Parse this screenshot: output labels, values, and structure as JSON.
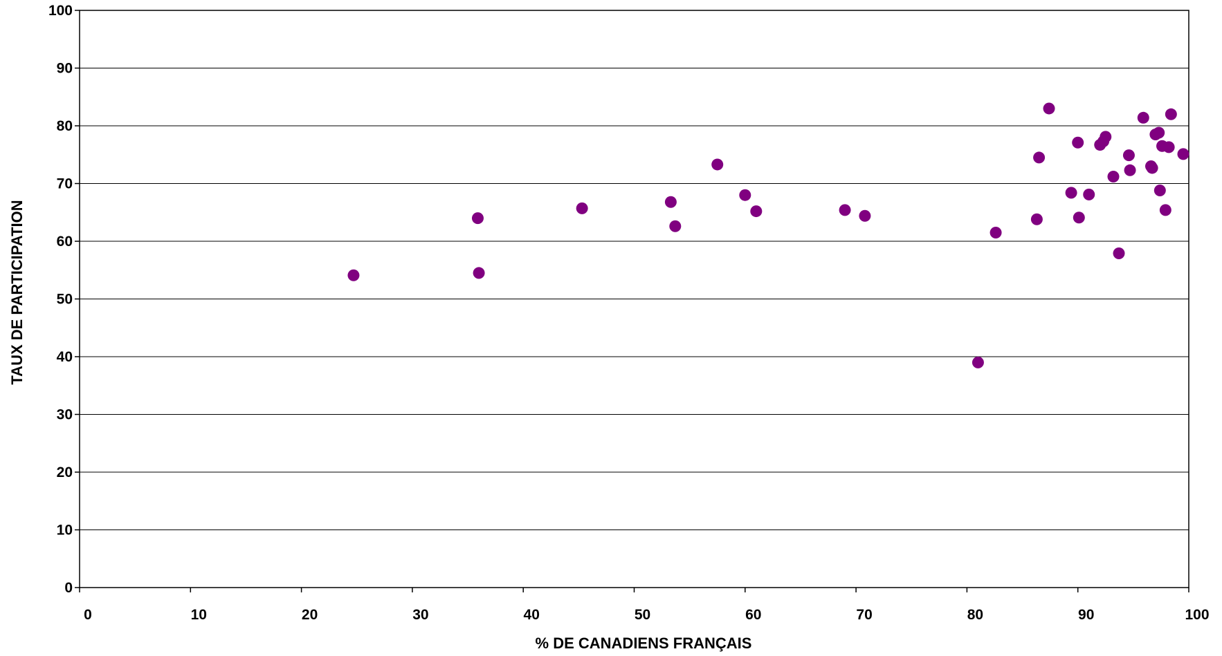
{
  "chart_data": {
    "type": "scatter",
    "title": "",
    "xlabel": "% DE CANADIENS FRANÇAIS",
    "ylabel": "TAUX DE PARTICIPATION",
    "xlim": [
      0,
      100
    ],
    "ylim": [
      0,
      100
    ],
    "xticks": [
      0,
      10,
      20,
      30,
      40,
      50,
      60,
      70,
      80,
      90,
      100
    ],
    "yticks": [
      0,
      10,
      20,
      30,
      40,
      50,
      60,
      70,
      80,
      90,
      100
    ],
    "grid": "horizontal",
    "legend": "none",
    "marker_color": "#800080",
    "points": [
      {
        "x": 24.7,
        "y": 54.1
      },
      {
        "x": 35.9,
        "y": 64.0
      },
      {
        "x": 36.0,
        "y": 54.5
      },
      {
        "x": 45.3,
        "y": 65.7
      },
      {
        "x": 53.3,
        "y": 66.8
      },
      {
        "x": 53.7,
        "y": 62.6
      },
      {
        "x": 57.5,
        "y": 73.3
      },
      {
        "x": 60.0,
        "y": 68.0
      },
      {
        "x": 61.0,
        "y": 65.2
      },
      {
        "x": 69.0,
        "y": 65.4
      },
      {
        "x": 70.8,
        "y": 64.4
      },
      {
        "x": 81.0,
        "y": 39.0
      },
      {
        "x": 82.6,
        "y": 61.5
      },
      {
        "x": 86.3,
        "y": 63.8
      },
      {
        "x": 86.5,
        "y": 74.5
      },
      {
        "x": 87.4,
        "y": 83.0
      },
      {
        "x": 89.4,
        "y": 68.4
      },
      {
        "x": 90.0,
        "y": 77.1
      },
      {
        "x": 90.1,
        "y": 64.1
      },
      {
        "x": 91.0,
        "y": 68.1
      },
      {
        "x": 92.0,
        "y": 76.7
      },
      {
        "x": 92.3,
        "y": 77.3
      },
      {
        "x": 92.5,
        "y": 78.1
      },
      {
        "x": 93.2,
        "y": 71.2
      },
      {
        "x": 93.7,
        "y": 57.9
      },
      {
        "x": 94.6,
        "y": 74.9
      },
      {
        "x": 94.7,
        "y": 72.3
      },
      {
        "x": 95.9,
        "y": 81.4
      },
      {
        "x": 96.6,
        "y": 73.0
      },
      {
        "x": 96.7,
        "y": 72.7
      },
      {
        "x": 97.0,
        "y": 78.5
      },
      {
        "x": 97.3,
        "y": 78.8
      },
      {
        "x": 97.4,
        "y": 68.8
      },
      {
        "x": 97.6,
        "y": 76.5
      },
      {
        "x": 97.9,
        "y": 65.4
      },
      {
        "x": 98.2,
        "y": 76.3
      },
      {
        "x": 98.4,
        "y": 82.0
      },
      {
        "x": 99.5,
        "y": 75.1
      }
    ]
  }
}
